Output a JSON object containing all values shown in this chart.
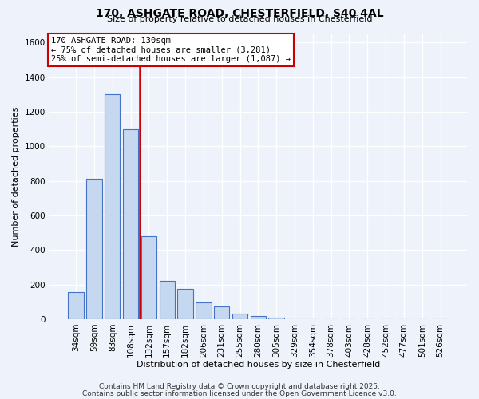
{
  "title_line1": "170, ASHGATE ROAD, CHESTERFIELD, S40 4AL",
  "title_line2": "Size of property relative to detached houses in Chesterfield",
  "xlabel": "Distribution of detached houses by size in Chesterfield",
  "ylabel": "Number of detached properties",
  "categories": [
    "34sqm",
    "59sqm",
    "83sqm",
    "108sqm",
    "132sqm",
    "157sqm",
    "182sqm",
    "206sqm",
    "231sqm",
    "255sqm",
    "280sqm",
    "305sqm",
    "329sqm",
    "354sqm",
    "378sqm",
    "403sqm",
    "428sqm",
    "452sqm",
    "477sqm",
    "501sqm",
    "526sqm"
  ],
  "values": [
    155,
    810,
    1300,
    1100,
    480,
    220,
    175,
    95,
    75,
    30,
    18,
    8,
    0,
    0,
    0,
    0,
    0,
    0,
    0,
    0,
    0
  ],
  "bar_color": "#c5d8f0",
  "bar_edge_color": "#4472c4",
  "vline_color": "#cc0000",
  "vline_position": 3.5,
  "annotation_text_line1": "170 ASHGATE ROAD: 130sqm",
  "annotation_text_line2": "← 75% of detached houses are smaller (3,281)",
  "annotation_text_line3": "25% of semi-detached houses are larger (1,087) →",
  "annotation_box_color": "#ffffff",
  "annotation_box_edge_color": "#cc0000",
  "ylim": [
    0,
    1650
  ],
  "yticks": [
    0,
    200,
    400,
    600,
    800,
    1000,
    1200,
    1400,
    1600
  ],
  "footer_line1": "Contains HM Land Registry data © Crown copyright and database right 2025.",
  "footer_line2": "Contains public sector information licensed under the Open Government Licence v3.0.",
  "background_color": "#eef2fa",
  "grid_color": "#ffffff",
  "title_fontsize": 10,
  "subtitle_fontsize": 8,
  "axis_label_fontsize": 8,
  "tick_fontsize": 7.5,
  "footer_fontsize": 6.5,
  "annotation_fontsize": 7.5
}
